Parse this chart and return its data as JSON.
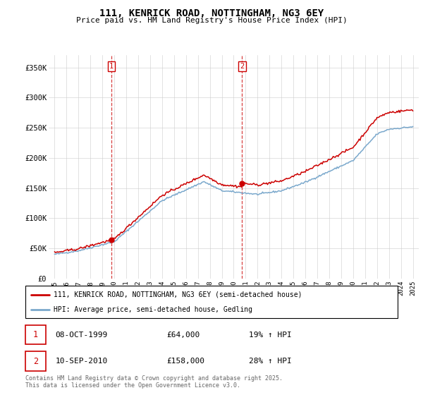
{
  "title": "111, KENRICK ROAD, NOTTINGHAM, NG3 6EY",
  "subtitle": "Price paid vs. HM Land Registry's House Price Index (HPI)",
  "legend_line1": "111, KENRICK ROAD, NOTTINGHAM, NG3 6EY (semi-detached house)",
  "legend_line2": "HPI: Average price, semi-detached house, Gedling",
  "footer": "Contains HM Land Registry data © Crown copyright and database right 2025.\nThis data is licensed under the Open Government Licence v3.0.",
  "transaction1_label": "1",
  "transaction1_date": "08-OCT-1999",
  "transaction1_price": "£64,000",
  "transaction1_hpi": "19% ↑ HPI",
  "transaction2_label": "2",
  "transaction2_date": "10-SEP-2010",
  "transaction2_price": "£158,000",
  "transaction2_hpi": "28% ↑ HPI",
  "vline1_x": 1999.77,
  "vline2_x": 2010.7,
  "marker1_x": 1999.77,
  "marker1_y": 64000,
  "marker2_x": 2010.7,
  "marker2_y": 158000,
  "red_color": "#cc0000",
  "blue_color": "#7aa8cc",
  "ylim": [
    0,
    370000
  ],
  "xlim": [
    1994.5,
    2025.5
  ],
  "yticks": [
    0,
    50000,
    100000,
    150000,
    200000,
    250000,
    300000,
    350000
  ],
  "ytick_labels": [
    "£0",
    "£50K",
    "£100K",
    "£150K",
    "£200K",
    "£250K",
    "£300K",
    "£350K"
  ],
  "xticks": [
    1995,
    1996,
    1997,
    1998,
    1999,
    2000,
    2001,
    2002,
    2003,
    2004,
    2005,
    2006,
    2007,
    2008,
    2009,
    2010,
    2011,
    2012,
    2013,
    2014,
    2015,
    2016,
    2017,
    2018,
    2019,
    2020,
    2021,
    2022,
    2023,
    2024,
    2025
  ]
}
